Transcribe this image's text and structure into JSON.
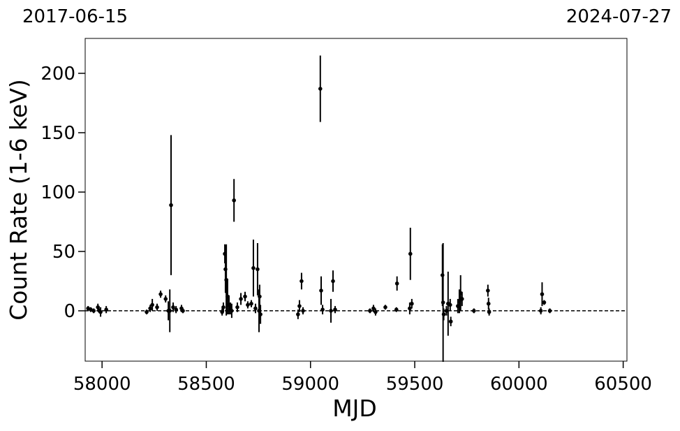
{
  "chart_data": {
    "type": "errorbar",
    "annotations": [
      "2017-06-15",
      "2024-07-27"
    ],
    "x_label": "MJD",
    "y_label": "Count Rate (1-6 keV)",
    "xlim": [
      57919,
      60518
    ],
    "ylim": [
      -42.4,
      229.4
    ],
    "xticks": [
      58000,
      58500,
      59000,
      59500,
      60000,
      60500
    ],
    "yticks": [
      0,
      50,
      100,
      150,
      200
    ],
    "hline": 0,
    "color": "#000000",
    "series": [
      {
        "x": [
          57933,
          57946,
          57960,
          57980,
          57987,
          57993,
          58020,
          58214,
          58231,
          58241,
          58264,
          58281,
          58305,
          58318,
          58331,
          58325,
          58341,
          58355,
          58381,
          58388,
          58576,
          58582,
          58589,
          58592,
          58596,
          58602,
          58609,
          58616,
          58622,
          58633,
          58649,
          58666,
          58686,
          58699,
          58716,
          58726,
          58736,
          58746,
          58753,
          58756,
          58760,
          58940,
          58947,
          58957,
          58964,
          59047,
          59051,
          59058,
          59098,
          59108,
          59118,
          59285,
          59302,
          59312,
          59359,
          59412,
          59415,
          59476,
          59479,
          59486,
          59633,
          59636,
          59639,
          59652,
          59660,
          59670,
          59673,
          59707,
          59714,
          59720,
          59727,
          59784,
          59851,
          59854,
          59857,
          60105,
          60111,
          60121,
          60148
        ],
        "values": [
          2,
          1,
          0,
          3,
          0,
          -1,
          1,
          -1,
          2,
          5,
          3,
          14,
          10,
          0,
          89,
          0,
          3,
          1,
          2,
          0,
          -1,
          3,
          48,
          35,
          26,
          12,
          5,
          2,
          0,
          93,
          3,
          10,
          12,
          5,
          6,
          36,
          2,
          35,
          0,
          12,
          -3,
          -3,
          4,
          25,
          0,
          187,
          17,
          1,
          0,
          25,
          1,
          0,
          2,
          -1,
          3,
          1,
          23,
          2,
          48,
          6,
          30,
          7,
          -3,
          0,
          6,
          5,
          -9,
          4,
          8,
          15,
          10,
          0,
          17,
          6,
          -1,
          0,
          14,
          7,
          0
        ],
        "errors": [
          2,
          2,
          2,
          3,
          2,
          4,
          3,
          2,
          3,
          5,
          3,
          3,
          3,
          8,
          59,
          18,
          4,
          3,
          3,
          2,
          3,
          4,
          8,
          20,
          30,
          15,
          8,
          5,
          6,
          18,
          4,
          5,
          4,
          3,
          3,
          24,
          4,
          22,
          18,
          10,
          8,
          4,
          5,
          7,
          3,
          28,
          12,
          4,
          10,
          9,
          3,
          2,
          3,
          3,
          2,
          2,
          6,
          5,
          22,
          4,
          26,
          50,
          5,
          4,
          27,
          5,
          4,
          6,
          10,
          15,
          6,
          2,
          5,
          5,
          3,
          3,
          10,
          2,
          2
        ]
      }
    ]
  }
}
